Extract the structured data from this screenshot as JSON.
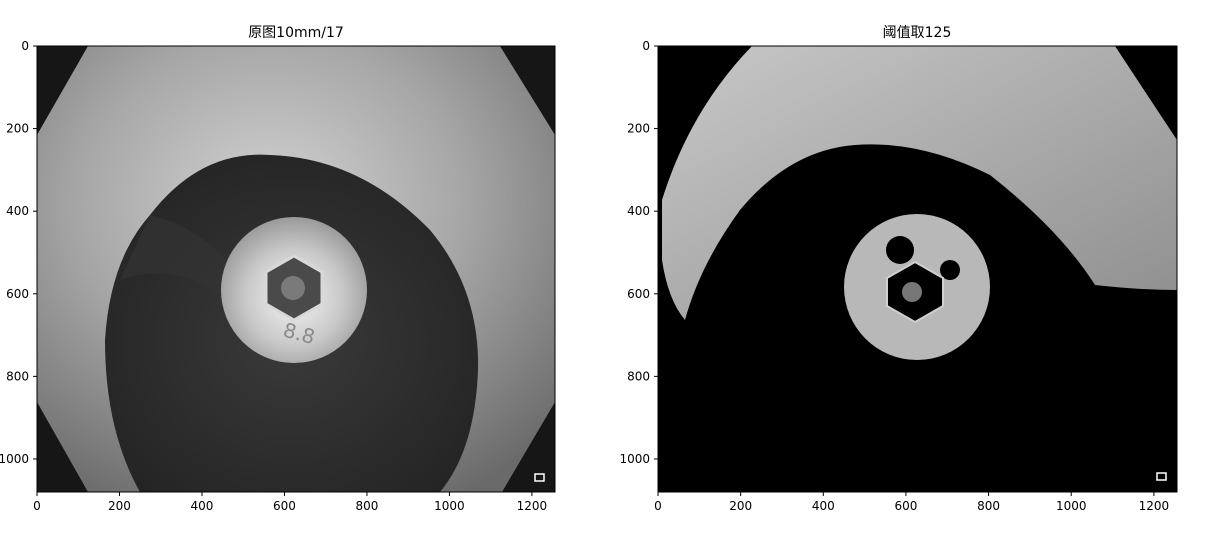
{
  "chart_data": [
    {
      "type": "image",
      "title": "原图10mm/17",
      "xlabel": "",
      "ylabel": "",
      "xlim": [
        0,
        1256
      ],
      "ylim": [
        1080,
        0
      ],
      "x_ticks": [
        0,
        200,
        400,
        600,
        800,
        1000,
        1200
      ],
      "y_ticks": [
        0,
        200,
        400,
        600,
        800,
        1000
      ],
      "content": "grayscale photo: pipe bore with hex-socket bolt head marked 8.8",
      "marker": "small white square near bottom-right"
    },
    {
      "type": "image",
      "title": "阈值取125",
      "xlabel": "",
      "ylabel": "",
      "xlim": [
        0,
        1256
      ],
      "ylim": [
        1080,
        0
      ],
      "x_ticks": [
        0,
        200,
        400,
        600,
        800,
        1000,
        1200
      ],
      "y_ticks": [
        0,
        200,
        400,
        600,
        800,
        1000
      ],
      "content": "thresholded image at level 125: bright upper arc and bolt head remain, rest black",
      "marker": "small white square near bottom-right"
    }
  ]
}
